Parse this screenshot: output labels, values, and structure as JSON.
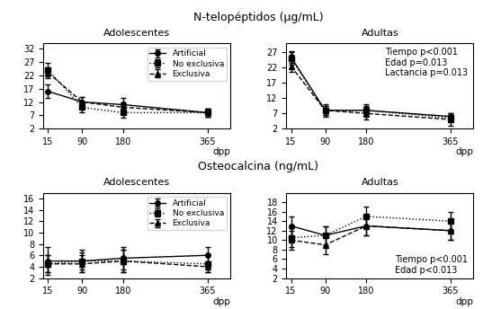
{
  "chart_data": [
    {
      "type": "line",
      "title": "Adolescentes",
      "subtitle": "N-telopéptidos (μg/mL)",
      "xlabel": "dpp",
      "x": [
        15,
        90,
        180,
        365
      ],
      "xlim": [
        5,
        415
      ],
      "xticks": [
        15,
        90,
        180,
        365
      ],
      "ylim": [
        2,
        34
      ],
      "yticks": [
        2,
        7,
        12,
        17,
        22,
        27,
        32
      ],
      "legend": "upper right",
      "series": [
        {
          "name": "Artificial",
          "color": "black",
          "marker": "circle",
          "line_style": "solid",
          "values": [
            16,
            12,
            11,
            8
          ],
          "errors": [
            2.5,
            2,
            2.5,
            1.5
          ]
        },
        {
          "name": "No exclusiva",
          "color": "black",
          "marker": "square",
          "line_style": "dotted",
          "values": [
            24,
            10,
            8,
            8
          ],
          "errors": [
            2.5,
            2,
            2,
            1.5
          ]
        },
        {
          "name": "Exclusiva",
          "color": "black",
          "marker": "triangle",
          "line_style": "dashed",
          "values": [
            23,
            12,
            10,
            8
          ],
          "errors": [
            2,
            2,
            2,
            1.5
          ]
        }
      ]
    },
    {
      "type": "line",
      "title": "Adultas",
      "xlabel": "dpp",
      "x": [
        15,
        90,
        180,
        365
      ],
      "xlim": [
        5,
        415
      ],
      "xticks": [
        15,
        90,
        180,
        365
      ],
      "ylim": [
        2,
        30
      ],
      "yticks": [
        2,
        7,
        12,
        17,
        22,
        27
      ],
      "annotations": [
        "Tiempo p<0.001\nEdad p=0.013\nLactancia p=0.013"
      ],
      "series": [
        {
          "name": "Artificial",
          "color": "black",
          "marker": "circle",
          "line_style": "solid",
          "values": [
            25.5,
            8,
            8,
            6
          ],
          "errors": [
            2,
            1.5,
            2,
            1
          ]
        },
        {
          "name": "No exclusiva",
          "color": "black",
          "marker": "square",
          "line_style": "dotted",
          "values": [
            25,
            8,
            8,
            5.5
          ],
          "errors": [
            2,
            1.5,
            1.5,
            1
          ]
        },
        {
          "name": "Exclusiva",
          "color": "black",
          "marker": "triangle",
          "line_style": "dashed",
          "values": [
            22.5,
            8,
            7,
            5
          ],
          "errors": [
            2,
            2,
            2,
            2
          ]
        }
      ]
    },
    {
      "type": "line",
      "title": "Adolescentes",
      "subtitle": "Osteocalcina (ng/mL)",
      "xlabel": "dpp",
      "x": [
        15,
        90,
        180,
        365
      ],
      "xlim": [
        5,
        415
      ],
      "xticks": [
        15,
        90,
        180,
        365
      ],
      "ylim": [
        2,
        17
      ],
      "yticks": [
        2,
        4,
        6,
        8,
        10,
        12,
        14,
        16
      ],
      "legend": "upper right",
      "series": [
        {
          "name": "Artificial",
          "color": "black",
          "marker": "circle",
          "line_style": "solid",
          "values": [
            5,
            5,
            5.5,
            6
          ],
          "errors": [
            2.5,
            2,
            2,
            1.5
          ]
        },
        {
          "name": "No exclusiva",
          "color": "black",
          "marker": "square",
          "line_style": "dotted",
          "values": [
            4.5,
            5,
            5,
            4.5
          ],
          "errors": [
            1.5,
            1.5,
            2,
            1.5
          ]
        },
        {
          "name": "Exclusiva",
          "color": "black",
          "marker": "triangle",
          "line_style": "dashed",
          "values": [
            4.5,
            4.5,
            5,
            4
          ],
          "errors": [
            1.5,
            1.5,
            2,
            1
          ]
        }
      ]
    },
    {
      "type": "line",
      "title": "Adultas",
      "xlabel": "dpp",
      "x": [
        15,
        90,
        180,
        365
      ],
      "xlim": [
        5,
        415
      ],
      "xticks": [
        15,
        90,
        180,
        365
      ],
      "ylim": [
        2,
        20
      ],
      "yticks": [
        2,
        4,
        6,
        8,
        10,
        12,
        14,
        16,
        18
      ],
      "annotations": [
        "Tiempo p<0.001\nEdad p<0.013"
      ],
      "series": [
        {
          "name": "Artificial",
          "color": "black",
          "marker": "circle",
          "line_style": "solid",
          "values": [
            13,
            11,
            13,
            12
          ],
          "errors": [
            2,
            2,
            2,
            2
          ]
        },
        {
          "name": "No exclusiva",
          "color": "black",
          "marker": "square",
          "line_style": "dotted",
          "values": [
            10.5,
            11,
            15,
            14
          ],
          "errors": [
            2,
            2,
            2,
            2
          ]
        },
        {
          "name": "Exclusiva",
          "color": "black",
          "marker": "triangle",
          "line_style": "dashed",
          "values": [
            10,
            9,
            13,
            12
          ],
          "errors": [
            2,
            2,
            2,
            2
          ]
        }
      ]
    }
  ]
}
